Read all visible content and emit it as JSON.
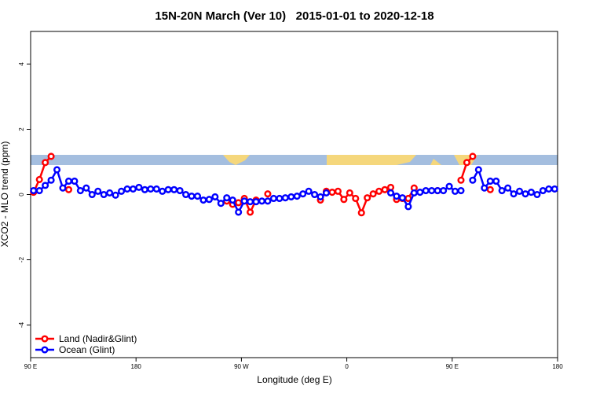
{
  "chart_data": {
    "type": "line",
    "title": "15N-20N March (Ver 10)   2015-01-01 to 2020-12-18",
    "x_label": "Longitude (deg E)",
    "y_label": "XCO2 - MLO trend (ppm)",
    "xlim": [
      90,
      540
    ],
    "ylim": [
      -5,
      5
    ],
    "xticks": [
      {
        "value": 90,
        "label": "90 E"
      },
      180,
      {
        "value": 270,
        "label": "90 W"
      },
      {
        "value": 360,
        "label": "0"
      },
      {
        "value": 450,
        "label": "90 E"
      },
      {
        "value": 540,
        "label": "180"
      }
    ],
    "yticks": [
      -4,
      -2,
      0,
      2,
      4
    ],
    "legend": "bottom-left",
    "x": [
      92.5,
      97.5,
      102.5,
      107.5,
      112.5,
      117.5,
      122.5,
      127.5,
      132.5,
      137.5,
      142.5,
      147.5,
      152.5,
      157.5,
      162.5,
      167.5,
      172.5,
      177.5,
      182.5,
      187.5,
      192.5,
      197.5,
      202.5,
      207.5,
      212.5,
      217.5,
      222.5,
      227.5,
      232.5,
      237.5,
      242.5,
      247.5,
      252.5,
      257.5,
      262.5,
      267.5,
      272.5,
      277.5,
      282.5,
      287.5,
      292.5,
      297.5,
      302.5,
      307.5,
      312.5,
      317.5,
      322.5,
      327.5,
      332.5,
      337.5,
      342.5,
      347.5,
      352.5,
      357.5,
      362.5,
      367.5,
      372.5,
      377.5,
      382.5,
      387.5,
      392.5,
      397.5,
      402.5,
      407.5,
      412.5,
      417.5,
      422.5,
      427.5,
      432.5,
      437.5,
      442.5,
      447.5,
      452.5,
      457.5,
      462.5,
      467.5,
      472.5,
      477.5,
      482.5,
      487.5,
      492.5,
      497.5,
      502.5,
      507.5,
      512.5,
      517.5,
      522.5,
      527.5,
      532.5,
      537.5
    ],
    "series": [
      {
        "name": "Land (Nadir&Glint)",
        "color": "#ff0000",
        "values": [
          0.07,
          0.46,
          0.98,
          1.17,
          null,
          null,
          0.15,
          null,
          null,
          null,
          null,
          null,
          null,
          null,
          null,
          null,
          null,
          null,
          null,
          null,
          null,
          null,
          null,
          null,
          null,
          null,
          null,
          null,
          null,
          null,
          null,
          null,
          null,
          -0.2,
          -0.3,
          -0.25,
          -0.12,
          -0.54,
          -0.17,
          null,
          0.02,
          null,
          null,
          null,
          null,
          null,
          null,
          null,
          null,
          -0.17,
          0.1,
          0.07,
          0.1,
          -0.15,
          0.05,
          -0.12,
          -0.56,
          -0.1,
          0.02,
          0.1,
          0.15,
          0.22,
          -0.15,
          -0.12,
          -0.12,
          0.2,
          null,
          null,
          null,
          0.12,
          null,
          null,
          null,
          0.44,
          0.98,
          1.17,
          null,
          null,
          0.15,
          null,
          null,
          null,
          null,
          null,
          null,
          null,
          null,
          null,
          null,
          null
        ]
      },
      {
        "name": "Ocean (Glint)",
        "color": "#0000ff",
        "values": [
          0.12,
          0.12,
          0.28,
          0.44,
          0.76,
          0.2,
          0.41,
          0.41,
          0.12,
          0.2,
          0,
          0.1,
          0,
          0.05,
          -0.02,
          0.1,
          0.17,
          0.17,
          0.22,
          0.15,
          0.17,
          0.17,
          0.1,
          0.15,
          0.15,
          0.12,
          0,
          -0.05,
          -0.05,
          -0.17,
          -0.15,
          -0.07,
          -0.27,
          -0.1,
          -0.17,
          -0.54,
          -0.2,
          -0.22,
          -0.22,
          -0.2,
          -0.2,
          -0.12,
          -0.12,
          -0.1,
          -0.07,
          -0.05,
          0.02,
          0.1,
          0,
          -0.07,
          0.05,
          null,
          null,
          null,
          null,
          null,
          null,
          null,
          null,
          null,
          null,
          0.05,
          -0.05,
          -0.1,
          -0.37,
          0.05,
          0.07,
          0.12,
          0.12,
          0.12,
          0.12,
          0.25,
          0.1,
          0.12,
          null,
          0.44,
          0.76,
          0.2,
          0.41,
          0.41,
          0.12,
          0.2,
          0.02,
          0.1,
          0.02,
          0.07,
          0,
          0.12,
          0.17,
          0.17
        ]
      }
    ]
  }
}
